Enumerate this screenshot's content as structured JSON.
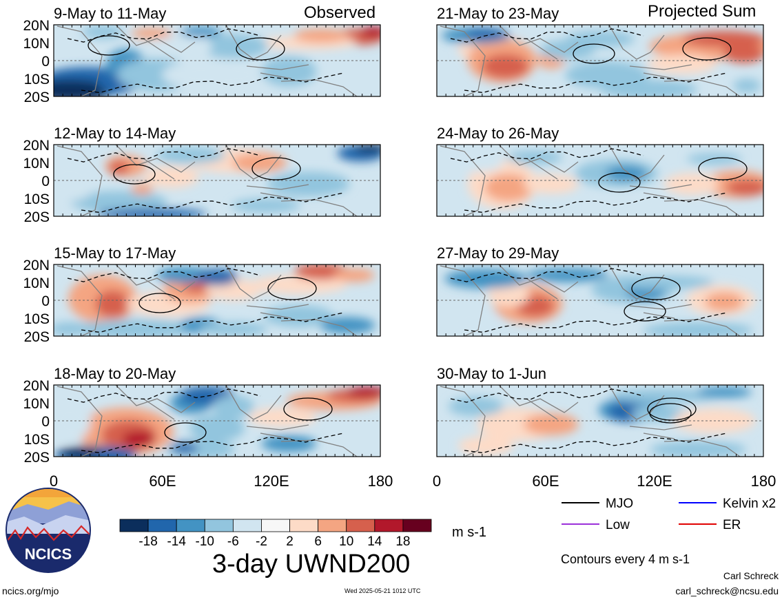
{
  "left_header": "Observed",
  "right_header": "Projected Sum",
  "lat_labels": [
    "20N",
    "10N",
    "0",
    "10S",
    "20S"
  ],
  "lon_labels": [
    "0",
    "60E",
    "120E",
    "180"
  ],
  "panels": [
    {
      "column": "left",
      "title": "9-May to 11-May"
    },
    {
      "column": "left",
      "title": "12-May to 14-May"
    },
    {
      "column": "left",
      "title": "15-May to 17-May"
    },
    {
      "column": "left",
      "title": "18-May to 20-May"
    },
    {
      "column": "right",
      "title": "21-May to 23-May"
    },
    {
      "column": "right",
      "title": "24-May to 26-May"
    },
    {
      "column": "right",
      "title": "27-May to 29-May"
    },
    {
      "column": "right",
      "title": "30-May to 1-Jun"
    }
  ],
  "colorbar": {
    "labels": [
      "-18",
      "-14",
      "-10",
      "-6",
      "-2",
      "2",
      "6",
      "10",
      "14",
      "18"
    ],
    "colors": [
      "#0b2e5c",
      "#2166ac",
      "#4393c3",
      "#92c5de",
      "#d1e5f0",
      "#f7f7f7",
      "#fddbc7",
      "#f4a582",
      "#d6604d",
      "#b2182b",
      "#67001f"
    ],
    "units": "m s-1"
  },
  "chart_title": "3-day UWND200",
  "legend": [
    {
      "label": "MJO",
      "color": "#000000"
    },
    {
      "label": "Kelvin x2",
      "color": "#0000ff"
    },
    {
      "label": "Low",
      "color": "#9b30d9"
    },
    {
      "label": "ER",
      "color": "#e00000"
    }
  ],
  "contour_note": "Contours every 4 m s-1",
  "author": "Carl Schreck",
  "email": "carl_schreck@ncsu.edu",
  "website": "ncics.org/mjo",
  "timestamp": "Wed 2025-05-21 1012 UTC",
  "logo_text": "NCICS"
}
